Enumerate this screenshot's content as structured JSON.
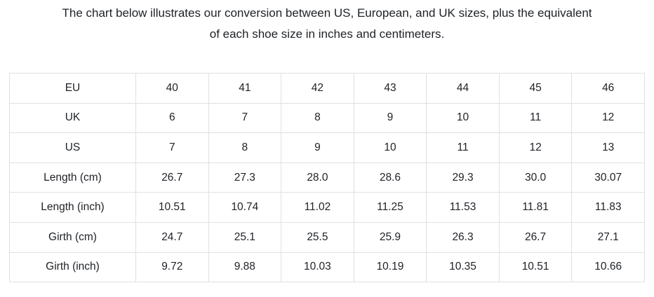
{
  "heading": {
    "line1": "The chart below illustrates our conversion between US, European, and UK sizes, plus the equivalent",
    "line2": "of each shoe size in inches and centimeters."
  },
  "colors": {
    "background": "#ffffff",
    "text": "#1e2126",
    "table_border": "#e0e0e0"
  },
  "chart_data": {
    "type": "table",
    "title": "The chart below illustrates our conversion between US, European, and UK sizes, plus the equivalent of each shoe size in inches and centimeters.",
    "grid": true,
    "row_headers": [
      "EU",
      "UK",
      "US",
      "Length (cm)",
      "Length (inch)",
      "Girth (cm)",
      "Girth (inch)"
    ],
    "rows": [
      [
        "40",
        "41",
        "42",
        "43",
        "44",
        "45",
        "46"
      ],
      [
        "6",
        "7",
        "8",
        "9",
        "10",
        "11",
        "12"
      ],
      [
        "7",
        "8",
        "9",
        "10",
        "11",
        "12",
        "13"
      ],
      [
        "26.7",
        "27.3",
        "28.0",
        "28.6",
        "29.3",
        "30.0",
        "30.07"
      ],
      [
        "10.51",
        "10.74",
        "11.02",
        "11.25",
        "11.53",
        "11.81",
        "11.83"
      ],
      [
        "24.7",
        "25.1",
        "25.5",
        "25.9",
        "26.3",
        "26.7",
        "27.1"
      ],
      [
        "9.72",
        "9.88",
        "10.03",
        "10.19",
        "10.35",
        "10.51",
        "10.66"
      ]
    ]
  }
}
